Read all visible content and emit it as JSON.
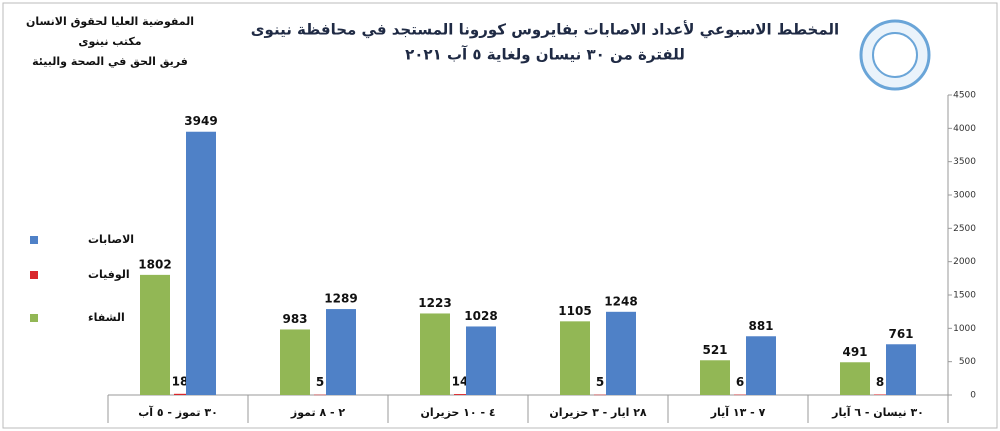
{
  "chart_data": {
    "type": "bar",
    "title": "المخطط الاسبوعي لأعداد الاصابات بفايروس كورونا المستجد في محافظة نينوى",
    "subtitle": "للفترة من ٣٠ نيسان ولغاية ٥ آب ٢٠٢١",
    "annotations": [
      "المفوضية العليا لحقوق الانسان",
      "مكتب نينوى",
      "فريق الحق في الصحة والبيئة"
    ],
    "categories": [
      "٣٠ نيسان - ٦ آيار",
      "٧ - ١٣ آيار",
      "٢٨ ايار - ٣ حزيران",
      "٤ - ١٠ حزيران",
      "٢ - ٨ تموز",
      "٣٠ تموز - ٥ آب"
    ],
    "series": [
      {
        "name": "الشفاء",
        "color": "#92b755",
        "values": [
          491,
          521,
          1105,
          1223,
          983,
          1802
        ]
      },
      {
        "name": "الوفيات",
        "color": "#d9262b",
        "values": [
          8,
          6,
          5,
          14,
          5,
          18
        ]
      },
      {
        "name": "الاصابات",
        "color": "#4f81c7",
        "values": [
          761,
          881,
          1248,
          1028,
          1289,
          3949
        ]
      }
    ],
    "ylim": [
      0,
      4500
    ],
    "yticks": [
      0,
      500,
      1000,
      1500,
      2000,
      2500,
      3000,
      3500,
      4000,
      4500
    ],
    "grid": false,
    "legend": "left"
  }
}
